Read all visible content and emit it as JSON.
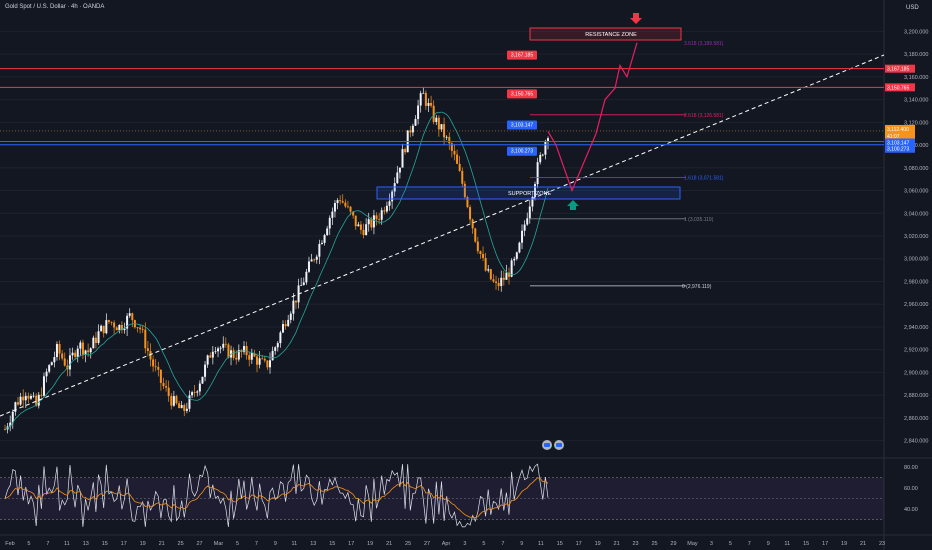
{
  "header": {
    "title": "Gold Spot / U.S. Dollar · 4h · OANDA",
    "currency": "USD"
  },
  "price_axis": {
    "ticks": [
      "3,200.000",
      "3,180.000",
      "3,160.000",
      "3,140.000",
      "3,120.000",
      "3,100.000",
      "3,080.000",
      "3,060.000",
      "3,040.000",
      "3,020.000",
      "3,000.000",
      "2,980.000",
      "2,960.000",
      "2,940.000",
      "2,920.000",
      "2,900.000",
      "2,880.000",
      "2,860.000",
      "2,840.000"
    ]
  },
  "price_badges": [
    {
      "text": "3,167.185",
      "color": "#f23645"
    },
    {
      "text": "3,150.765",
      "color": "#f23645"
    },
    {
      "text": "3,112.400",
      "color": "#f7931a"
    },
    {
      "text": "41:07",
      "color": "#f7931a"
    },
    {
      "text": "3,103.147",
      "color": "#2962ff"
    },
    {
      "text": "3,100.273",
      "color": "#2962ff"
    }
  ],
  "chart_labels": [
    {
      "text": "3,167.185",
      "color": "#f23645"
    },
    {
      "text": "3,150.765",
      "color": "#f23645"
    },
    {
      "text": "3,103.147",
      "color": "#2962ff"
    },
    {
      "text": "3,100.273",
      "color": "#2962ff"
    }
  ],
  "zones": {
    "resistance": "RESISTANCE ZONE",
    "support": "SUPPORT ZONE"
  },
  "fib_levels": [
    {
      "text": "3.618 (3,189.581)",
      "color": "#9c27b0"
    },
    {
      "text": "2.618 (3,126.581)",
      "color": "#e91e63"
    },
    {
      "text": "1.618 (3,071.581)",
      "color": "#2962ff"
    },
    {
      "text": "1 (3,035.119)",
      "color": "#787b86"
    },
    {
      "text": "0 (2,976.119)",
      "color": "#d1d4dc"
    }
  ],
  "rsi_axis": {
    "ticks": [
      "80.00",
      "60.00",
      "40.00"
    ]
  },
  "time_axis": {
    "labels": [
      "Feb",
      "5",
      "7",
      "11",
      "13",
      "15",
      "17",
      "19",
      "21",
      "25",
      "27",
      "Mar",
      "5",
      "7",
      "9",
      "11",
      "13",
      "15",
      "17",
      "19",
      "21",
      "25",
      "27",
      "Apr",
      "3",
      "5",
      "7",
      "9",
      "11",
      "15",
      "17",
      "19",
      "21",
      "23",
      "25",
      "29",
      "May",
      "3",
      "5",
      "7",
      "9",
      "11",
      "15",
      "17",
      "19",
      "21",
      "23"
    ]
  },
  "chart_data": {
    "type": "candlestick",
    "symbol": "Gold Spot / U.S. Dollar",
    "interval": "4h",
    "source": "OANDA",
    "ylim": [
      2830,
      3210
    ],
    "close_path": [
      2850,
      2872,
      2884,
      2870,
      2900,
      2920,
      2905,
      2925,
      2918,
      2935,
      2945,
      2940,
      2950,
      2938,
      2910,
      2890,
      2875,
      2865,
      2880,
      2900,
      2925,
      2920,
      2915,
      2918,
      2912,
      2905,
      2925,
      2950,
      2968,
      2990,
      3010,
      3035,
      3055,
      3040,
      3025,
      3030,
      3040,
      3060,
      3090,
      3120,
      3145,
      3125,
      3110,
      3090,
      3060,
      3020,
      2990,
      2975,
      2985,
      3000,
      3040,
      3080,
      3112
    ],
    "resistance_lines": [
      3167.185,
      3150.765
    ],
    "support_lines": [
      3103.147,
      3100.273
    ],
    "current_price": 3112.4,
    "fibonacci": {
      "0": 2976.119,
      "1": 3035.119,
      "1.618": 3071.581,
      "2.618": 3126.581,
      "3.618": 3189.581
    },
    "projection": [
      3112,
      3100,
      3060,
      3110,
      3140,
      3150,
      3170,
      3160,
      3190
    ],
    "rsi_ylim": [
      20,
      85
    ]
  }
}
